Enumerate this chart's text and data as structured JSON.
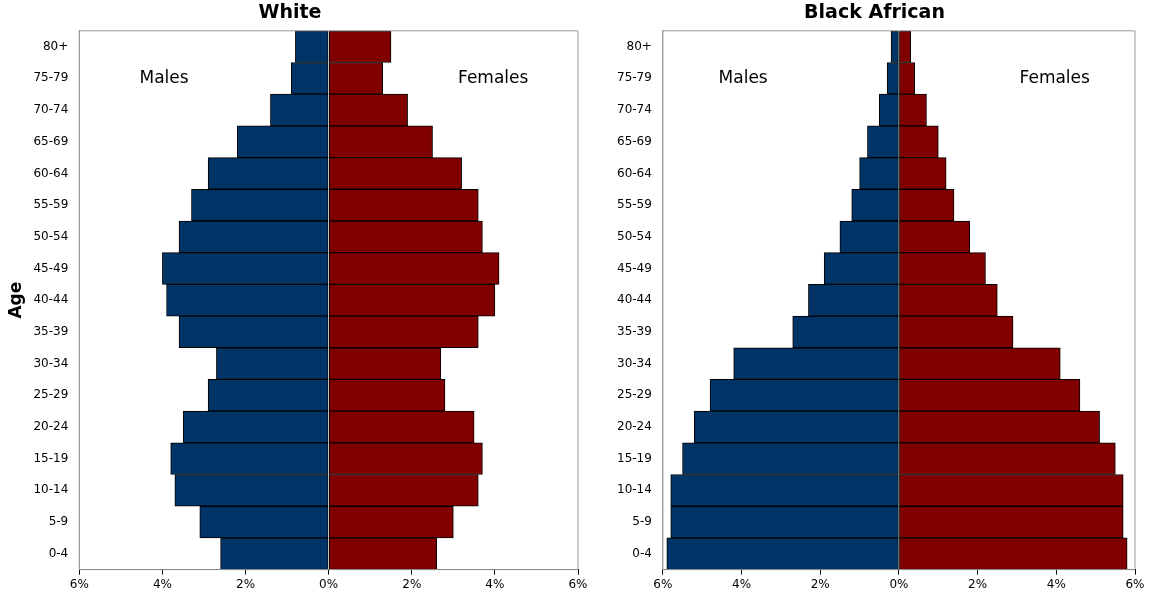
{
  "chart_data": [
    {
      "type": "bar",
      "orientation": "horizontal",
      "stacked": true,
      "title": "White",
      "ylabel": "Age",
      "categories": [
        "80+",
        "75-79",
        "70-74",
        "65-69",
        "60-64",
        "55-59",
        "50-54",
        "45-49",
        "40-44",
        "35-39",
        "30-34",
        "25-29",
        "20-24",
        "15-19",
        "10-14",
        "5-9",
        "0-4"
      ],
      "series": [
        {
          "color": "#003366",
          "values": [
            -0.8,
            -0.9,
            -1.4,
            -2.2,
            -2.9,
            -3.3,
            -3.6,
            -4.0,
            -3.9,
            -3.6,
            -2.7,
            -2.9,
            -3.5,
            -3.8,
            -3.7,
            -3.1,
            -2.6
          ]
        },
        {
          "color": "#800000",
          "values": [
            1.5,
            1.3,
            1.9,
            2.5,
            3.2,
            3.6,
            3.7,
            4.1,
            4.0,
            3.6,
            2.7,
            2.8,
            3.5,
            3.7,
            3.6,
            3.0,
            2.6
          ]
        }
      ],
      "xlim": [
        -6,
        6
      ],
      "xticks": [
        {
          "value": -6,
          "label": "6%"
        },
        {
          "value": -4,
          "label": "4%"
        },
        {
          "value": -2,
          "label": "2%"
        },
        {
          "value": 0,
          "label": "0%"
        },
        {
          "value": 2,
          "label": "2%"
        },
        {
          "value": 4,
          "label": "4%"
        },
        {
          "value": 6,
          "label": "6%"
        }
      ],
      "annotations": [
        "Males",
        "Females"
      ]
    },
    {
      "type": "bar",
      "orientation": "horizontal",
      "stacked": true,
      "title": "Black African",
      "categories": [
        "80+",
        "75-79",
        "70-74",
        "65-69",
        "60-64",
        "55-59",
        "50-54",
        "45-49",
        "40-44",
        "35-39",
        "30-34",
        "25-29",
        "20-24",
        "15-19",
        "10-14",
        "5-9",
        "0-4"
      ],
      "series": [
        {
          "color": "#003366",
          "values": [
            -0.2,
            -0.3,
            -0.5,
            -0.8,
            -1.0,
            -1.2,
            -1.5,
            -1.9,
            -2.3,
            -2.7,
            -4.2,
            -4.8,
            -5.2,
            -5.5,
            -5.8,
            -5.8,
            -5.9
          ]
        },
        {
          "color": "#800000",
          "values": [
            0.3,
            0.4,
            0.7,
            1.0,
            1.2,
            1.4,
            1.8,
            2.2,
            2.5,
            2.9,
            4.1,
            4.6,
            5.1,
            5.5,
            5.7,
            5.7,
            5.8
          ]
        }
      ],
      "xlim": [
        -6,
        6
      ],
      "xticks": [
        {
          "value": -6,
          "label": "6%"
        },
        {
          "value": -4,
          "label": "4%"
        },
        {
          "value": -2,
          "label": "2%"
        },
        {
          "value": 0,
          "label": "0%"
        },
        {
          "value": 2,
          "label": "2%"
        },
        {
          "value": 4,
          "label": "4%"
        },
        {
          "value": 6,
          "label": "6%"
        }
      ],
      "annotations": [
        "Males",
        "Females"
      ]
    }
  ]
}
